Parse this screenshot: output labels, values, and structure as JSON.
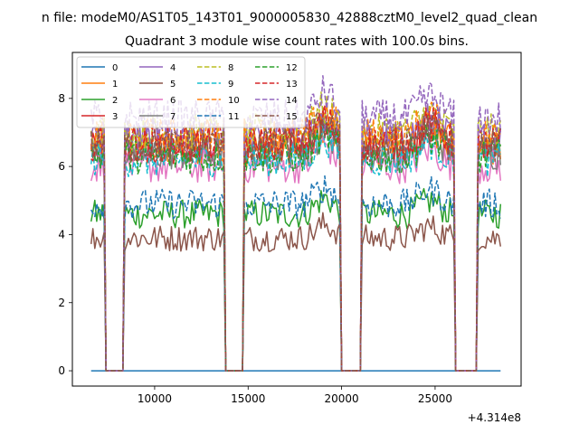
{
  "chart_data": {
    "type": "line",
    "suptitle": "n file: modeM0/AS1T05_143T01_9000005830_42888cztM0_level2_quad_clean",
    "title": "Quadrant 3 module wise count rates with 100.0s bins.",
    "xlabel": "",
    "ylabel": "",
    "x_offset_label": "+4.314e8",
    "xlim": [
      5600,
      29600
    ],
    "ylim": [
      -0.45,
      9.35
    ],
    "xticks": [
      10000,
      15000,
      20000,
      25000
    ],
    "xtick_labels": [
      "10000",
      "15000",
      "20000",
      "25000"
    ],
    "yticks": [
      0,
      2,
      4,
      6,
      8
    ],
    "ytick_labels": [
      "0",
      "2",
      "4",
      "6",
      "8"
    ],
    "grid": false,
    "legend_position": "upper-left",
    "x_start": 6600,
    "x_end": 28500,
    "bin_seconds": 100,
    "gaps": [
      [
        7300,
        8400
      ],
      [
        13700,
        14800
      ],
      [
        19900,
        21100
      ],
      [
        26000,
        27300
      ]
    ],
    "series": [
      {
        "name": "0",
        "color": "#1f77b4",
        "style": "solid",
        "level": 0.0
      },
      {
        "name": "1",
        "color": "#ff7f0e",
        "style": "solid",
        "level": 6.5
      },
      {
        "name": "2",
        "color": "#2ca02c",
        "style": "solid",
        "level": 4.6
      },
      {
        "name": "3",
        "color": "#d62728",
        "style": "solid",
        "level": 6.6
      },
      {
        "name": "4",
        "color": "#9467bd",
        "style": "solid",
        "level": 6.8
      },
      {
        "name": "5",
        "color": "#8c564b",
        "style": "solid",
        "level": 3.9
      },
      {
        "name": "6",
        "color": "#e377c2",
        "style": "solid",
        "level": 6.0
      },
      {
        "name": "7",
        "color": "#7f7f7f",
        "style": "solid",
        "level": 6.4
      },
      {
        "name": "8",
        "color": "#bcbd22",
        "style": "dashed",
        "level": 7.0
      },
      {
        "name": "9",
        "color": "#17becf",
        "style": "dashed",
        "level": 6.2
      },
      {
        "name": "10",
        "color": "#ff7f0e",
        "style": "dashed",
        "level": 6.9
      },
      {
        "name": "11",
        "color": "#1f77b4",
        "style": "dashed",
        "level": 4.9
      },
      {
        "name": "12",
        "color": "#2ca02c",
        "style": "dashed",
        "level": 6.3
      },
      {
        "name": "13",
        "color": "#d62728",
        "style": "dashed",
        "level": 6.7
      },
      {
        "name": "14",
        "color": "#9467bd",
        "style": "dashed",
        "level": 7.4
      },
      {
        "name": "15",
        "color": "#8c564b",
        "style": "dashed",
        "level": 6.6
      }
    ]
  }
}
